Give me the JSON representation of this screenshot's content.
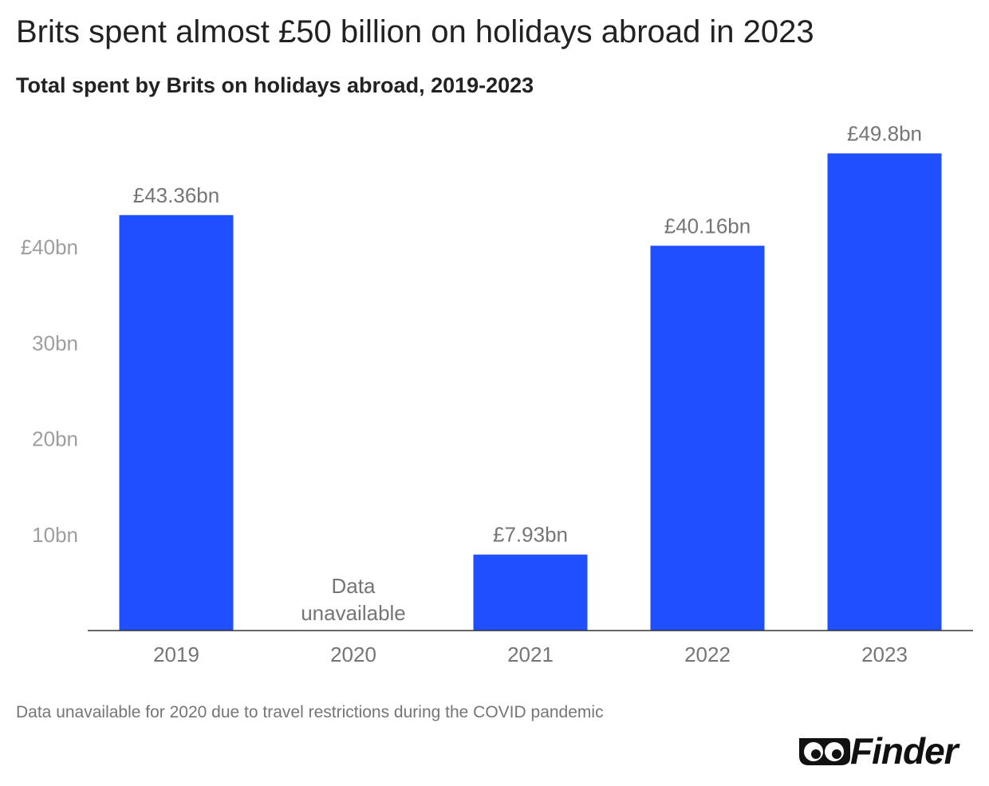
{
  "title": "Brits spent almost £50 billion on holidays abroad in 2023",
  "subtitle": "Total spent by Brits on holidays abroad, 2019-2023",
  "footnote": "Data unavailable for 2020 due to travel restrictions during the COVID pandemic",
  "brand": {
    "name": "Finder",
    "logo_icon": "eyes-icon"
  },
  "colors": {
    "bar": "#1f4fff",
    "axis_text": "#9e9e9e",
    "label_text": "#757575",
    "title_text": "#222222"
  },
  "chart_data": {
    "type": "bar",
    "categories": [
      "2019",
      "2020",
      "2021",
      "2022",
      "2023"
    ],
    "values": [
      43.36,
      null,
      7.93,
      40.16,
      49.8
    ],
    "value_labels": [
      "£43.36bn",
      "",
      "£7.93bn",
      "£40.16bn",
      "£49.8bn"
    ],
    "missing_label_lines": [
      "Data",
      "unavailable"
    ],
    "ylim": [
      0,
      50
    ],
    "yticks": [
      10,
      20,
      30,
      40
    ],
    "ytick_labels": [
      "10bn",
      "20bn",
      "30bn",
      "£40bn"
    ],
    "xlabel": "",
    "ylabel": "",
    "grid": false,
    "legend": false
  }
}
